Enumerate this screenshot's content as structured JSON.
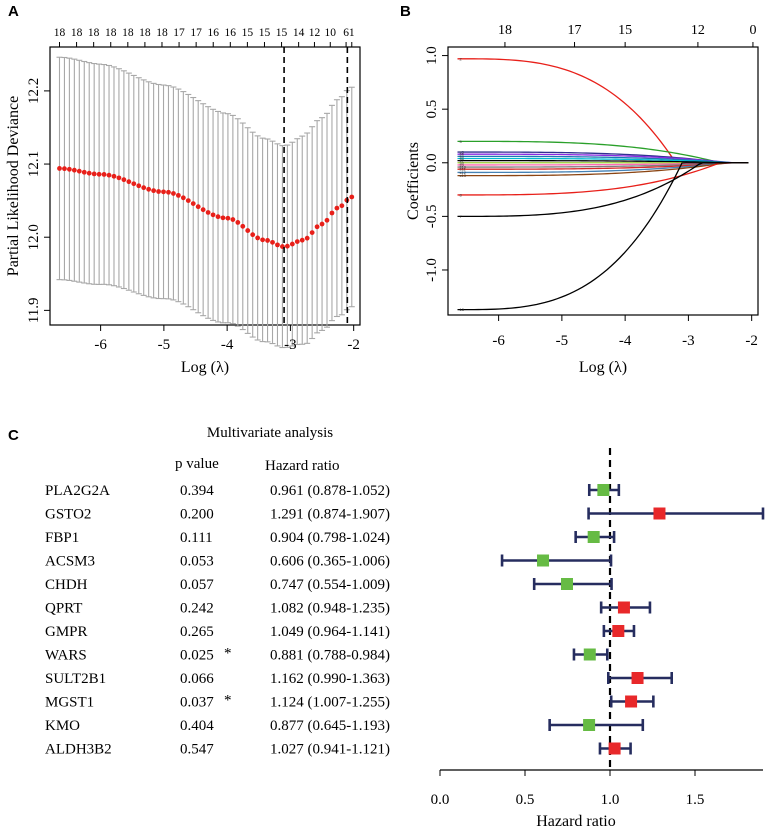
{
  "panels": {
    "a": {
      "letter": "A"
    },
    "b": {
      "letter": "B"
    },
    "c": {
      "letter": "C"
    }
  },
  "chart_data": [
    {
      "type": "scatter",
      "id": "cv",
      "panel": "A",
      "xlabel": "Log (λ)",
      "ylabel": "Partial Likelihood Deviance",
      "xlim": [
        -6.8,
        -1.9
      ],
      "ylim": [
        11.88,
        12.26
      ],
      "xticks": [
        -6,
        -5,
        -4,
        -3,
        -2
      ],
      "yticks": [
        11.9,
        12.0,
        12.1,
        12.2
      ],
      "xtick_labels": [
        "-6",
        "-5",
        "-4",
        "-3",
        "-2"
      ],
      "ytick_labels": [
        "11.9",
        "12.0",
        "12.1",
        "12.2"
      ],
      "top_ticks": [
        "18",
        "18",
        "18",
        "18",
        "18",
        "18",
        "18",
        "17",
        "17",
        "16",
        "16",
        "15",
        "15",
        "15",
        "14",
        "12",
        "10",
        "6",
        "1"
      ],
      "top_tick_x": [
        -6.65,
        -6.38,
        -6.11,
        -5.84,
        -5.57,
        -5.3,
        -5.03,
        -4.76,
        -4.49,
        -4.22,
        -3.95,
        -3.68,
        -3.41,
        -3.14,
        -2.87,
        -2.62,
        -2.37,
        -2.12,
        -2.03
      ],
      "lambda_min": -3.1,
      "lambda_1se": -2.1,
      "points": {
        "x_start": -6.65,
        "x_end": -2.03,
        "count": 60,
        "center_key": [
          [
            -6.65,
            12.094
          ],
          [
            -6.0,
            12.086
          ],
          [
            -5.0,
            12.062
          ],
          [
            -4.0,
            12.026
          ],
          [
            -3.4,
            11.996
          ],
          [
            -3.1,
            11.987
          ],
          [
            -2.8,
            11.996
          ],
          [
            -2.5,
            12.018
          ],
          [
            -2.25,
            12.04
          ],
          [
            -2.03,
            12.055
          ]
        ],
        "se_key": [
          [
            -6.65,
            0.152
          ],
          [
            -4.5,
            0.145
          ],
          [
            -3.1,
            0.138
          ],
          [
            -2.6,
            0.145
          ],
          [
            -2.03,
            0.15
          ]
        ]
      }
    },
    {
      "type": "line",
      "id": "path",
      "panel": "B",
      "xlabel": "Log (λ)",
      "ylabel": "Coefficients",
      "xlim": [
        -6.8,
        -1.9
      ],
      "ylim": [
        -1.42,
        1.08
      ],
      "xticks": [
        -6,
        -5,
        -4,
        -3,
        -2
      ],
      "yticks": [
        -1.0,
        -0.5,
        0.0,
        0.5,
        1.0
      ],
      "xtick_labels": [
        "-6",
        "-5",
        "-4",
        "-3",
        "-2"
      ],
      "ytick_labels": [
        "-1.0",
        "-0.5",
        "0.0",
        "0.5",
        "1.0"
      ],
      "top_ticks": [
        "18",
        "17",
        "15",
        "12",
        "0"
      ],
      "top_tick_x": [
        -5.9,
        -4.8,
        -4.0,
        -2.85,
        -1.98
      ],
      "x_end": -2.05,
      "series": [
        {
          "name": "2",
          "color": "#e8201a",
          "start": 0.97,
          "fade_at": -3.2
        },
        {
          "name": "5",
          "color": "#2aa02a",
          "start": 0.2,
          "fade_at": -2.5
        },
        {
          "name": "s3",
          "color": "#303090",
          "start": 0.1,
          "fade_at": -2.4
        },
        {
          "name": "s4",
          "color": "#8a2be2",
          "start": 0.08,
          "fade_at": -2.3
        },
        {
          "name": "s5",
          "color": "#1f77b4",
          "start": 0.06,
          "fade_at": -2.3
        },
        {
          "name": "s6",
          "color": "#00bcd4",
          "start": 0.04,
          "fade_at": -2.3
        },
        {
          "name": "s7",
          "color": "#000000",
          "start": 0.02,
          "fade_at": -2.3
        },
        {
          "name": "s8",
          "color": "#9acd32",
          "start": 0.0,
          "fade_at": -2.3
        },
        {
          "name": "s9",
          "color": "#ff69b4",
          "start": -0.02,
          "fade_at": -2.3
        },
        {
          "name": "s10",
          "color": "#7f7f7f",
          "start": -0.04,
          "fade_at": -2.3
        },
        {
          "name": "s11",
          "color": "#d62728",
          "start": -0.06,
          "fade_at": -2.3
        },
        {
          "name": "s12",
          "color": "#4682b4",
          "start": -0.09,
          "fade_at": -2.4
        },
        {
          "name": "s13",
          "color": "#8b4513",
          "start": -0.12,
          "fade_at": -2.4
        },
        {
          "name": "8",
          "color": "#e8201a",
          "start": -0.3,
          "fade_at": -2.5
        },
        {
          "name": "7",
          "color": "#000000",
          "start": -0.5,
          "fade_at": -2.8
        },
        {
          "name": "13",
          "color": "#000000",
          "start": -1.37,
          "fade_at": -3.1
        }
      ]
    },
    {
      "type": "scatter",
      "id": "forest",
      "panel": "C",
      "title": "Multivariate analysis",
      "header_p": "p value",
      "header_hr": "Hazard ratio",
      "xlabel": "Hazard ratio",
      "xlim": [
        0.0,
        1.9
      ],
      "xticks": [
        0.0,
        0.5,
        1.0,
        1.5
      ],
      "xtick_labels": [
        "0.0",
        "0.5",
        "1.0",
        "1.5"
      ],
      "reference": 1.0,
      "point_color_lt1": "#66bb44",
      "point_color_gt1": "#e8282a",
      "whisker_color": "#262d5f",
      "rows": [
        {
          "gene": "PLA2G2A",
          "p": "0.394",
          "star": "",
          "hr_text": "0.961 (0.878-1.052)",
          "hr": 0.961,
          "lo": 0.878,
          "hi": 1.052
        },
        {
          "gene": "GSTO2",
          "p": "0.200",
          "star": "",
          "hr_text": "1.291 (0.874-1.907)",
          "hr": 1.291,
          "lo": 0.874,
          "hi": 1.907
        },
        {
          "gene": "FBP1",
          "p": "0.111",
          "star": "",
          "hr_text": "0.904 (0.798-1.024)",
          "hr": 0.904,
          "lo": 0.798,
          "hi": 1.024
        },
        {
          "gene": "ACSM3",
          "p": "0.053",
          "star": "",
          "hr_text": "0.606 (0.365-1.006)",
          "hr": 0.606,
          "lo": 0.365,
          "hi": 1.006
        },
        {
          "gene": "CHDH",
          "p": "0.057",
          "star": "",
          "hr_text": "0.747 (0.554-1.009)",
          "hr": 0.747,
          "lo": 0.554,
          "hi": 1.009
        },
        {
          "gene": "QPRT",
          "p": "0.242",
          "star": "",
          "hr_text": "1.082 (0.948-1.235)",
          "hr": 1.082,
          "lo": 0.948,
          "hi": 1.235
        },
        {
          "gene": "GMPR",
          "p": "0.265",
          "star": "",
          "hr_text": "1.049 (0.964-1.141)",
          "hr": 1.049,
          "lo": 0.964,
          "hi": 1.141
        },
        {
          "gene": "WARS",
          "p": "0.025",
          "star": "*",
          "hr_text": "0.881 (0.788-0.984)",
          "hr": 0.881,
          "lo": 0.788,
          "hi": 0.984
        },
        {
          "gene": "SULT2B1",
          "p": "0.066",
          "star": "",
          "hr_text": "1.162 (0.990-1.363)",
          "hr": 1.162,
          "lo": 0.99,
          "hi": 1.363
        },
        {
          "gene": "MGST1",
          "p": "0.037",
          "star": "*",
          "hr_text": "1.124 (1.007-1.255)",
          "hr": 1.124,
          "lo": 1.007,
          "hi": 1.255
        },
        {
          "gene": "KMO",
          "p": "0.404",
          "star": "",
          "hr_text": "0.877 (0.645-1.193)",
          "hr": 0.877,
          "lo": 0.645,
          "hi": 1.193
        },
        {
          "gene": "ALDH3B2",
          "p": "0.547",
          "star": "",
          "hr_text": "1.027 (0.941-1.121)",
          "hr": 1.027,
          "lo": 0.941,
          "hi": 1.121
        }
      ]
    }
  ]
}
